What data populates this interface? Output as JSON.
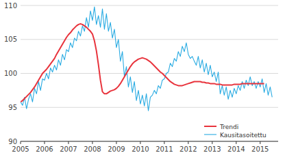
{
  "chart_data": {
    "type": "line",
    "x": [
      2005,
      2005.0833,
      2005.1667,
      2005.25,
      2005.3333,
      2005.4167,
      2005.5,
      2005.5833,
      2005.6667,
      2005.75,
      2005.8333,
      2005.9167,
      2006,
      2006.0833,
      2006.1667,
      2006.25,
      2006.3333,
      2006.4167,
      2006.5,
      2006.5833,
      2006.6667,
      2006.75,
      2006.8333,
      2006.9167,
      2007,
      2007.0833,
      2007.1667,
      2007.25,
      2007.3333,
      2007.4167,
      2007.5,
      2007.5833,
      2007.6667,
      2007.75,
      2007.8333,
      2007.9167,
      2008,
      2008.0833,
      2008.1667,
      2008.25,
      2008.3333,
      2008.4167,
      2008.5,
      2008.5833,
      2008.6667,
      2008.75,
      2008.8333,
      2008.9167,
      2009,
      2009.0833,
      2009.1667,
      2009.25,
      2009.3333,
      2009.4167,
      2009.5,
      2009.5833,
      2009.6667,
      2009.75,
      2009.8333,
      2009.9167,
      2010,
      2010.0833,
      2010.1667,
      2010.25,
      2010.3333,
      2010.4167,
      2010.5,
      2010.5833,
      2010.6667,
      2010.75,
      2010.8333,
      2010.9167,
      2011,
      2011.0833,
      2011.1667,
      2011.25,
      2011.3333,
      2011.4167,
      2011.5,
      2011.5833,
      2011.6667,
      2011.75,
      2011.8333,
      2011.9167,
      2012,
      2012.0833,
      2012.1667,
      2012.25,
      2012.3333,
      2012.4167,
      2012.5,
      2012.5833,
      2012.6667,
      2012.75,
      2012.8333,
      2012.9167,
      2013,
      2013.0833,
      2013.1667,
      2013.25,
      2013.3333,
      2013.4167,
      2013.5,
      2013.5833,
      2013.6667,
      2013.75,
      2013.8333,
      2013.9167,
      2014,
      2014.0833,
      2014.1667,
      2014.25,
      2014.3333,
      2014.4167,
      2014.5,
      2014.5833,
      2014.6667,
      2014.75,
      2014.8333,
      2014.9167,
      2015,
      2015.0833,
      2015.1667,
      2015.25,
      2015.3333,
      2015.4167,
      2015.5
    ],
    "series": [
      {
        "name": "Trendi",
        "color": "#e8333c",
        "values": [
          95.8,
          96.0,
          96.3,
          96.6,
          96.9,
          97.2,
          97.6,
          98.0,
          98.5,
          99.0,
          99.5,
          100.0,
          100.3,
          100.6,
          101.0,
          101.4,
          101.8,
          102.2,
          102.8,
          103.3,
          103.8,
          104.3,
          104.8,
          105.3,
          105.7,
          106.0,
          106.4,
          106.7,
          107.0,
          107.2,
          107.3,
          107.2,
          107.0,
          106.8,
          106.5,
          106.2,
          105.8,
          104.8,
          103.3,
          101.3,
          99.0,
          97.3,
          97.0,
          97.0,
          97.2,
          97.4,
          97.5,
          97.6,
          97.8,
          98.1,
          98.5,
          99.0,
          99.5,
          100.0,
          100.5,
          101.0,
          101.4,
          101.7,
          101.9,
          102.1,
          102.2,
          102.3,
          102.2,
          102.1,
          101.9,
          101.7,
          101.4,
          101.1,
          100.8,
          100.5,
          100.2,
          100.0,
          99.7,
          99.4,
          99.1,
          98.8,
          98.6,
          98.4,
          98.3,
          98.2,
          98.2,
          98.2,
          98.3,
          98.4,
          98.5,
          98.6,
          98.7,
          98.8,
          98.8,
          98.8,
          98.8,
          98.7,
          98.7,
          98.6,
          98.6,
          98.5,
          98.5,
          98.5,
          98.4,
          98.4,
          98.4,
          98.3,
          98.3,
          98.3,
          98.3,
          98.3,
          98.3,
          98.4,
          98.4,
          98.4,
          98.4,
          98.5,
          98.5,
          98.5,
          98.5,
          98.5,
          98.5,
          98.5,
          98.5,
          98.5,
          98.5,
          98.5,
          98.5,
          null,
          null,
          null,
          null
        ]
      },
      {
        "name": "Kausitasoitettu",
        "color": "#29abe2",
        "values": [
          95.8,
          95.3,
          96.5,
          94.8,
          96.2,
          97.0,
          95.8,
          97.8,
          97.0,
          98.8,
          97.5,
          99.2,
          99.0,
          100.0,
          99.2,
          100.8,
          100.2,
          101.2,
          100.5,
          102.0,
          101.2,
          102.8,
          102.0,
          103.5,
          103.2,
          104.5,
          103.8,
          105.2,
          104.8,
          106.2,
          105.5,
          107.0,
          106.2,
          108.2,
          106.8,
          109.2,
          107.8,
          109.8,
          107.2,
          108.5,
          106.8,
          109.5,
          106.5,
          108.8,
          106.2,
          107.5,
          105.2,
          106.5,
          103.8,
          105.0,
          101.8,
          103.2,
          99.5,
          101.0,
          98.0,
          99.5,
          97.2,
          98.8,
          96.0,
          97.5,
          95.5,
          96.8,
          95.2,
          97.0,
          94.5,
          96.5,
          96.8,
          97.5,
          97.0,
          98.2,
          97.8,
          99.0,
          99.2,
          100.0,
          100.2,
          101.5,
          101.0,
          102.2,
          101.8,
          103.2,
          102.5,
          104.0,
          103.2,
          104.5,
          102.8,
          102.2,
          102.5,
          101.8,
          101.2,
          102.5,
          100.8,
          102.0,
          100.2,
          101.5,
          99.8,
          101.2,
          99.5,
          100.2,
          98.8,
          100.2,
          97.0,
          98.2,
          96.8,
          98.0,
          96.2,
          97.5,
          96.5,
          97.8,
          97.0,
          98.2,
          97.5,
          98.8,
          97.8,
          99.0,
          98.2,
          99.5,
          98.2,
          98.8,
          97.8,
          98.8,
          98.0,
          99.2,
          97.2,
          98.5,
          96.8,
          98.0,
          96.5
        ]
      }
    ],
    "xlim": [
      2005.0,
      2015.75
    ],
    "ylim": [
      90,
      110
    ],
    "xticks": [
      2005,
      2006,
      2007,
      2008,
      2009,
      2010,
      2011,
      2012,
      2013,
      2014,
      2015
    ],
    "yticks": [
      90,
      95,
      100,
      105,
      110
    ],
    "grid": true,
    "legend": "lower right"
  }
}
